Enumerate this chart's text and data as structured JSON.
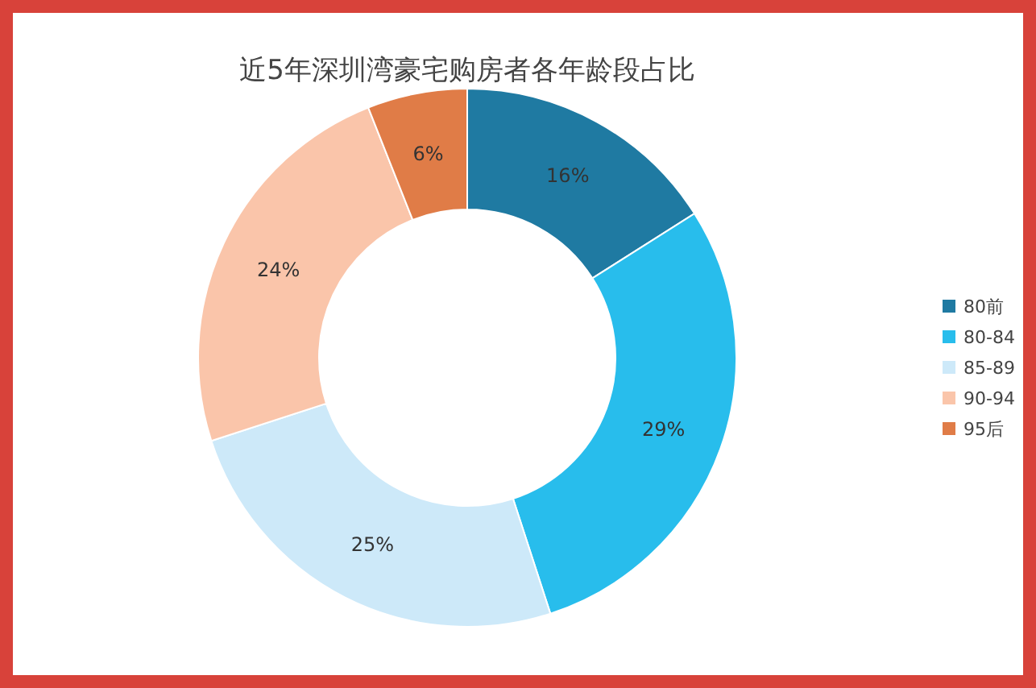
{
  "chart_data": {
    "type": "donut",
    "title": "近5年深圳湾豪宅购房者各年龄段占比",
    "categories": [
      "80前",
      "80-84",
      "85-89",
      "90-94",
      "95后"
    ],
    "values": [
      16,
      29,
      25,
      24,
      6
    ],
    "colors": [
      "#1f7aa2",
      "#28bdec",
      "#cde9f9",
      "#fac5aa",
      "#e07c47"
    ],
    "value_labels": [
      "16%",
      "29%",
      "25%",
      "24%",
      "6%"
    ],
    "legend": "right"
  }
}
